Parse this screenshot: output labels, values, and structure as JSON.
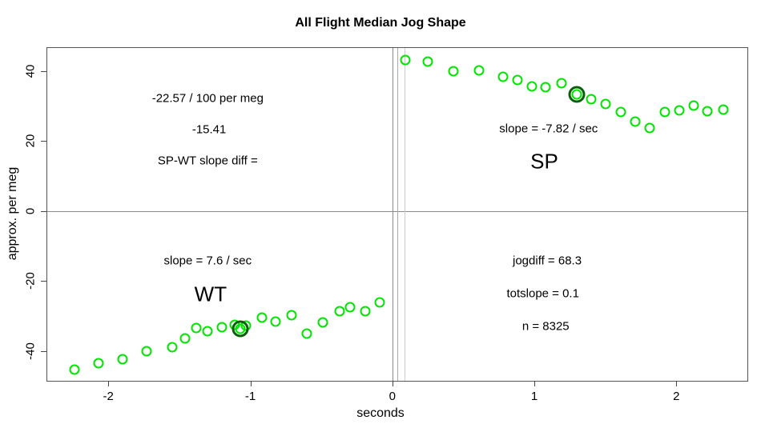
{
  "chart_data": {
    "type": "scatter",
    "title": "All Flight Median Jog Shape",
    "xlabel": "seconds",
    "ylabel": "approx. per meg",
    "xlim": [
      -2.43,
      2.5
    ],
    "ylim": [
      -48.5,
      46.6
    ],
    "x_ticks": [
      -2,
      -1,
      0,
      1,
      2
    ],
    "y_ticks": [
      -40,
      -20,
      0,
      20,
      40
    ],
    "grid": false,
    "legend": "none",
    "point_color": "#00e400",
    "highlight_color": "#0a5f0a",
    "series": [
      {
        "name": "WT",
        "highlight_index": 10,
        "points": [
          [
            -2.24,
            -45.2
          ],
          [
            -2.07,
            -43.5
          ],
          [
            -1.9,
            -42.4
          ],
          [
            -1.73,
            -40.1
          ],
          [
            -1.55,
            -38.8
          ],
          [
            -1.46,
            -36.3
          ],
          [
            -1.38,
            -33.4
          ],
          [
            -1.3,
            -34.4
          ],
          [
            -1.2,
            -33.2
          ],
          [
            -1.11,
            -32.5
          ],
          [
            -1.07,
            -33.7
          ],
          [
            -1.03,
            -32.7
          ],
          [
            -0.92,
            -30.4
          ],
          [
            -0.82,
            -31.5
          ],
          [
            -0.71,
            -29.8
          ],
          [
            -0.6,
            -35.1
          ],
          [
            -0.49,
            -31.7
          ],
          [
            -0.37,
            -28.7
          ],
          [
            -0.3,
            -27.5
          ],
          [
            -0.19,
            -28.7
          ],
          [
            -0.09,
            -26.2
          ]
        ]
      },
      {
        "name": "SP",
        "highlight_index": 9,
        "points": [
          [
            0.09,
            43.2
          ],
          [
            0.25,
            42.6
          ],
          [
            0.43,
            39.9
          ],
          [
            0.61,
            40.3
          ],
          [
            0.78,
            38.4
          ],
          [
            0.88,
            37.4
          ],
          [
            0.98,
            35.7
          ],
          [
            1.08,
            35.4
          ],
          [
            1.19,
            36.5
          ],
          [
            1.3,
            33.3
          ],
          [
            1.4,
            31.9
          ],
          [
            1.5,
            30.7
          ],
          [
            1.61,
            28.3
          ],
          [
            1.71,
            25.6
          ],
          [
            1.81,
            23.7
          ],
          [
            1.92,
            28.4
          ],
          [
            2.02,
            28.8
          ],
          [
            2.12,
            30.1
          ],
          [
            2.22,
            28.5
          ],
          [
            2.33,
            28.9
          ]
        ]
      }
    ],
    "reference_lines": {
      "horizontal": [
        {
          "y": 0,
          "color": "#8a8a8a"
        }
      ],
      "vertical": [
        {
          "x": 0,
          "color": "#8a8a8a"
        },
        {
          "x": 0.037,
          "color": "#aaaaaa"
        },
        {
          "x": 0.087,
          "color": "#cccccc"
        }
      ]
    },
    "annotations": [
      {
        "text": "-22.57 / 100 per meg",
        "x": -1.3,
        "y": 32.3,
        "size": "normal"
      },
      {
        "text": "-15.41",
        "x": -1.29,
        "y": 23.2,
        "size": "normal"
      },
      {
        "text": "SP-WT slope diff =",
        "x": -1.3,
        "y": 14.4,
        "size": "normal"
      },
      {
        "text": "slope = -7.82 / sec",
        "x": 1.1,
        "y": 23.5,
        "size": "normal"
      },
      {
        "text": "SP",
        "x": 1.07,
        "y": 14.2,
        "size": "large"
      },
      {
        "text": "slope = 7.6 / sec",
        "x": -1.3,
        "y": -14.3,
        "size": "normal"
      },
      {
        "text": "WT",
        "x": -1.28,
        "y": -23.8,
        "size": "large"
      },
      {
        "text": "jogdiff = 68.3",
        "x": 1.09,
        "y": -14.2,
        "size": "normal"
      },
      {
        "text": "totslope = 0.1",
        "x": 1.06,
        "y": -23.6,
        "size": "normal"
      },
      {
        "text": "n = 8325",
        "x": 1.08,
        "y": -32.9,
        "size": "normal"
      }
    ]
  }
}
